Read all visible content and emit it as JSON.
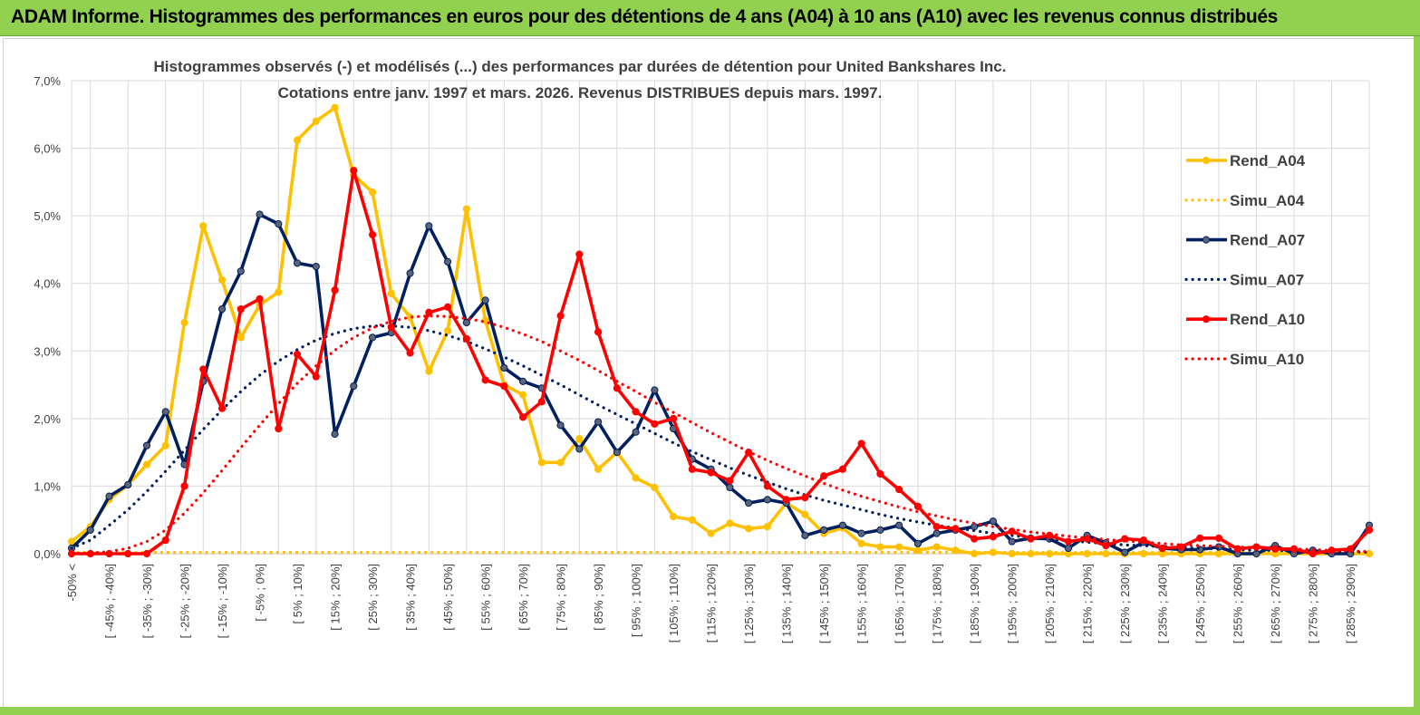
{
  "banner": {
    "title": "ADAM Informe. Histogrammes des performances en euros pour des détentions de 4 ans (A04) à 10 ans (A10) avec les revenus connus distribués"
  },
  "colors": {
    "banner_bg": "#92d050",
    "a04": "#ffc000",
    "a07": "#002060",
    "a10": "#ff0000",
    "grid": "#d9d9d9",
    "marker_a07": "#5a6478"
  },
  "chart_data": {
    "type": "line",
    "title": "Histogrammes observés (-) et modélisés (...) des performances par durées de détention pour United Bankshares Inc.",
    "subtitle": "Cotations entre janv. 1997 et mars. 2026. Revenus DISTRIBUES depuis mars. 1997.",
    "ylim": [
      0,
      7
    ],
    "yticks": [
      "0,0%",
      "1,0%",
      "2,0%",
      "3,0%",
      "4,0%",
      "5,0%",
      "6,0%",
      "7,0%"
    ],
    "xlabels": [
      "-50% <",
      "[ -45% ; -40%]",
      "[ -35% ; -30%]",
      "[ -25% ; -20%]",
      "[ -15% ; -10%]",
      "[ -5% ; 0%]",
      "[ 5% ; 10%]",
      "[ 15% ; 20%]",
      "[ 25% ; 30%]",
      "[ 35% ; 40%]",
      "[ 45% ; 50%]",
      "[ 55% ; 60%]",
      "[ 65% ; 70%]",
      "[ 75% ; 80%]",
      "[ 85% ; 90%]",
      "[ 95% ; 100%]",
      "[ 105% ; 110%]",
      "[ 115% ; 120%]",
      "[ 125% ; 130%]",
      "[ 135% ; 140%]",
      "[ 145% ; 150%]",
      "[ 155% ; 160%]",
      "[ 165% ; 170%]",
      "[ 175% ; 180%]",
      "[ 185% ; 190%]",
      "[ 195% ; 200%]",
      "[ 205% ; 210%]",
      "[ 215% ; 220%]",
      "[ 225% ; 230%]",
      "[ 235% ; 240%]",
      "[ 245% ; 250%]",
      "[ 255% ; 260%]",
      "[ 265% ; 270%]",
      "[ 275% ; 280%]",
      "[ 285% ; 290%]"
    ],
    "n_points": 70,
    "legend_position": "right",
    "series": [
      {
        "name": "Rend_A04",
        "style": "solid",
        "color": "#ffc000",
        "values": [
          0.18,
          0.4,
          0.8,
          1.02,
          1.32,
          1.6,
          3.42,
          4.85,
          4.05,
          3.2,
          3.68,
          3.87,
          6.12,
          6.4,
          6.6,
          5.6,
          5.35,
          3.85,
          3.5,
          2.7,
          3.3,
          5.1,
          3.45,
          2.5,
          2.35,
          1.35,
          1.35,
          1.7,
          1.25,
          1.5,
          1.12,
          0.98,
          0.55,
          0.5,
          0.3,
          0.45,
          0.37,
          0.4,
          0.75,
          0.58,
          0.3,
          0.38,
          0.15,
          0.1,
          0.1,
          0.05,
          0.1,
          0.05,
          0.0,
          0.02,
          0.0,
          0.0,
          0.0,
          0.0,
          0.0,
          0.0,
          0.0,
          0.0,
          0.0,
          0.0,
          0.0,
          0.0,
          0.0,
          0.0,
          0.0,
          0.0,
          0.0,
          0.0,
          0.0,
          0.0
        ]
      },
      {
        "name": "Simu_A04",
        "style": "dotted",
        "color": "#ffc000",
        "values": [
          0.02,
          0.02,
          0.02,
          0.02,
          0.02,
          0.02,
          0.02,
          0.02,
          0.02,
          0.02,
          0.02,
          0.02,
          0.02,
          0.02,
          0.02,
          0.02,
          0.02,
          0.02,
          0.02,
          0.02,
          0.02,
          0.02,
          0.02,
          0.02,
          0.02,
          0.02,
          0.02,
          0.02,
          0.02,
          0.02,
          0.02,
          0.02,
          0.02,
          0.02,
          0.02,
          0.02,
          0.02,
          0.02,
          0.02,
          0.02,
          0.02,
          0.02,
          0.02,
          0.02,
          0.02,
          0.02,
          0.02,
          0.02,
          0.02,
          0.02,
          0.02,
          0.02,
          0.02,
          0.02,
          0.02,
          0.02,
          0.02,
          0.02,
          0.02,
          0.02,
          0.02,
          0.02,
          0.02,
          0.02,
          0.02,
          0.02,
          0.02,
          0.02,
          0.02,
          0.02
        ]
      },
      {
        "name": "Rend_A07",
        "style": "solid",
        "color": "#002060",
        "values": [
          0.08,
          0.35,
          0.85,
          1.02,
          1.6,
          2.1,
          1.32,
          2.55,
          3.62,
          4.18,
          5.02,
          4.88,
          4.3,
          4.25,
          1.77,
          2.48,
          3.2,
          3.27,
          4.15,
          4.85,
          4.32,
          3.42,
          3.75,
          2.75,
          2.55,
          2.45,
          1.9,
          1.55,
          1.95,
          1.5,
          1.8,
          2.42,
          1.85,
          1.4,
          1.25,
          0.98,
          0.75,
          0.8,
          0.75,
          0.27,
          0.35,
          0.42,
          0.3,
          0.35,
          0.42,
          0.15,
          0.3,
          0.35,
          0.4,
          0.48,
          0.18,
          0.23,
          0.22,
          0.08,
          0.27,
          0.16,
          0.02,
          0.17,
          0.08,
          0.06,
          0.06,
          0.1,
          0.0,
          0.0,
          0.12,
          0.0,
          0.05,
          0.0,
          0.0,
          0.42
        ]
      },
      {
        "name": "Simu_A07",
        "style": "dotted",
        "color": "#002060",
        "values": [
          0.08,
          0.2,
          0.42,
          0.65,
          0.92,
          1.22,
          1.53,
          1.84,
          2.13,
          2.4,
          2.64,
          2.85,
          3.02,
          3.16,
          3.26,
          3.33,
          3.37,
          3.37,
          3.35,
          3.3,
          3.23,
          3.14,
          3.03,
          2.91,
          2.78,
          2.64,
          2.5,
          2.35,
          2.2,
          2.06,
          1.92,
          1.78,
          1.64,
          1.51,
          1.39,
          1.27,
          1.16,
          1.06,
          0.96,
          0.87,
          0.79,
          0.72,
          0.65,
          0.58,
          0.52,
          0.47,
          0.42,
          0.38,
          0.34,
          0.3,
          0.27,
          0.24,
          0.21,
          0.19,
          0.17,
          0.15,
          0.13,
          0.12,
          0.1,
          0.09,
          0.08,
          0.07,
          0.06,
          0.05,
          0.05,
          0.04,
          0.04,
          0.03,
          0.03,
          0.02
        ]
      },
      {
        "name": "Rend_A10",
        "style": "solid",
        "color": "#ff0000",
        "values": [
          0.0,
          0.0,
          0.0,
          0.0,
          0.0,
          0.2,
          1.0,
          2.73,
          2.15,
          3.62,
          3.77,
          1.85,
          2.95,
          2.62,
          3.9,
          5.67,
          4.72,
          3.35,
          2.97,
          3.57,
          3.65,
          3.18,
          2.57,
          2.48,
          2.02,
          2.25,
          3.52,
          4.43,
          3.28,
          2.45,
          2.1,
          1.92,
          2.0,
          1.25,
          1.2,
          1.08,
          1.5,
          1.0,
          0.8,
          0.83,
          1.15,
          1.25,
          1.63,
          1.18,
          0.95,
          0.7,
          0.4,
          0.37,
          0.22,
          0.25,
          0.33,
          0.22,
          0.27,
          0.18,
          0.22,
          0.12,
          0.22,
          0.2,
          0.08,
          0.1,
          0.23,
          0.23,
          0.07,
          0.1,
          0.07,
          0.07,
          0.0,
          0.05,
          0.07,
          0.35
        ]
      },
      {
        "name": "Simu_A10",
        "style": "dotted",
        "color": "#ff0000",
        "values": [
          0.0,
          0.01,
          0.03,
          0.08,
          0.18,
          0.35,
          0.6,
          0.9,
          1.23,
          1.57,
          1.9,
          2.22,
          2.52,
          2.78,
          3.01,
          3.2,
          3.34,
          3.44,
          3.5,
          3.52,
          3.51,
          3.48,
          3.43,
          3.35,
          3.25,
          3.14,
          3.0,
          2.86,
          2.71,
          2.55,
          2.4,
          2.24,
          2.09,
          1.94,
          1.79,
          1.65,
          1.51,
          1.38,
          1.26,
          1.15,
          1.04,
          0.94,
          0.85,
          0.77,
          0.69,
          0.62,
          0.56,
          0.5,
          0.45,
          0.4,
          0.36,
          0.32,
          0.29,
          0.26,
          0.23,
          0.21,
          0.19,
          0.17,
          0.15,
          0.13,
          0.12,
          0.11,
          0.1,
          0.09,
          0.08,
          0.07,
          0.06,
          0.05,
          0.04,
          0.03
        ]
      }
    ]
  }
}
